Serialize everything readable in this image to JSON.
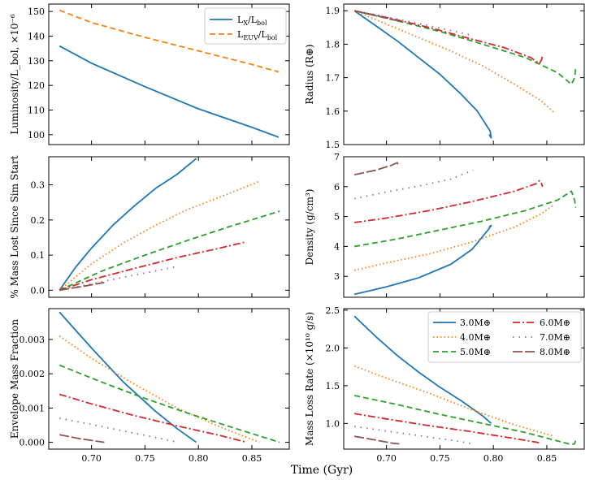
{
  "figure": {
    "xlabel": "Time (Gyr)",
    "xlim": [
      0.66,
      0.885
    ],
    "xticks": [
      0.7,
      0.75,
      0.8,
      0.85
    ],
    "xtick_labels": [
      "0.70",
      "0.75",
      "0.80",
      "0.85"
    ]
  },
  "colors": {
    "3.0": "#1f77b4",
    "4.0": "#ff7f0e",
    "5.0": "#2ca02c",
    "6.0": "#d62728",
    "7.0": "#9467bd",
    "8.0": "#8c564b"
  },
  "mass_legend": [
    {
      "mass": "3.0",
      "label": "3.0M⊕",
      "dash": ""
    },
    {
      "mass": "4.0",
      "label": "4.0M⊕",
      "dash": "1.5 3"
    },
    {
      "mass": "5.0",
      "label": "5.0M⊕",
      "dash": "7 4"
    },
    {
      "mass": "6.0",
      "label": "6.0M⊕",
      "dash": "9 3 2 3"
    },
    {
      "mass": "7.0",
      "label": "7.0M⊕",
      "dash": "1.5 6"
    },
    {
      "mass": "8.0",
      "label": "8.0M⊕",
      "dash": "12 3"
    }
  ],
  "chart_data": [
    {
      "id": "luminosity",
      "type": "line",
      "ylabel": "Luminosity/L_bol, ×10⁻⁶",
      "ylim": [
        96,
        153
      ],
      "yticks": [
        100,
        110,
        120,
        130,
        140,
        150
      ],
      "ytick_labels": [
        "100",
        "110",
        "120",
        "130",
        "140",
        "150"
      ],
      "legend": "top-right",
      "series": [
        {
          "name": "L_X/L_bol",
          "legend_main": "L",
          "legend_sub1": "X",
          "legend_mid": "/L",
          "legend_sub2": "bol",
          "color": "#1f77b4",
          "dash": "",
          "x": [
            0.67,
            0.7,
            0.75,
            0.8,
            0.85,
            0.875
          ],
          "y": [
            136,
            129,
            119.5,
            110.5,
            103,
            99
          ]
        },
        {
          "name": "L_EUV/L_bol",
          "legend_main": "L",
          "legend_sub1": "EUV",
          "legend_mid": "/L",
          "legend_sub2": "bol",
          "color": "#ff7f0e",
          "dash": "7 4",
          "x": [
            0.67,
            0.7,
            0.75,
            0.8,
            0.85,
            0.875
          ],
          "y": [
            150.5,
            145.5,
            139.5,
            134,
            128.5,
            125.5
          ]
        }
      ]
    },
    {
      "id": "radius",
      "type": "line",
      "ylabel": "Radius (R⊕)",
      "ylim": [
        1.5,
        1.92
      ],
      "yticks": [
        1.5,
        1.6,
        1.7,
        1.8,
        1.9
      ],
      "ytick_labels": [
        "1.5",
        "1.6",
        "1.7",
        "1.8",
        "1.9"
      ],
      "series": [
        {
          "mass": "3.0",
          "x": [
            0.67,
            0.69,
            0.71,
            0.73,
            0.75,
            0.77,
            0.785,
            0.797,
            0.798,
            0.796
          ],
          "y": [
            1.9,
            1.855,
            1.81,
            1.76,
            1.71,
            1.65,
            1.6,
            1.54,
            1.52,
            1.53
          ]
        },
        {
          "mass": "4.0",
          "x": [
            0.67,
            0.7,
            0.73,
            0.76,
            0.79,
            0.82,
            0.845,
            0.857
          ],
          "y": [
            1.9,
            1.86,
            1.82,
            1.78,
            1.735,
            1.68,
            1.63,
            1.595
          ]
        },
        {
          "mass": "5.0",
          "x": [
            0.67,
            0.71,
            0.75,
            0.79,
            0.83,
            0.86,
            0.873,
            0.876,
            0.877
          ],
          "y": [
            1.9,
            1.87,
            1.838,
            1.8,
            1.76,
            1.715,
            1.68,
            1.7,
            1.728
          ]
        },
        {
          "mass": "6.0",
          "x": [
            0.67,
            0.7,
            0.74,
            0.78,
            0.81,
            0.835,
            0.843,
            0.845,
            0.846
          ],
          "y": [
            1.9,
            1.88,
            1.85,
            1.815,
            1.79,
            1.76,
            1.742,
            1.753,
            1.765
          ]
        },
        {
          "mass": "7.0",
          "x": [
            0.67,
            0.69,
            0.71,
            0.73,
            0.75,
            0.77,
            0.781
          ],
          "y": [
            1.9,
            1.888,
            1.875,
            1.862,
            1.848,
            1.834,
            1.826
          ]
        },
        {
          "mass": "8.0",
          "x": [
            0.67,
            0.685,
            0.7,
            0.712
          ],
          "y": [
            1.9,
            1.889,
            1.878,
            1.869
          ]
        }
      ]
    },
    {
      "id": "mass_lost",
      "type": "line",
      "ylabel": "% Mass Lost Since Sim Start",
      "ylim": [
        -0.02,
        0.38
      ],
      "yticks": [
        0.0,
        0.1,
        0.2,
        0.3
      ],
      "ytick_labels": [
        "0.0",
        "0.1",
        "0.2",
        "0.3"
      ],
      "series": [
        {
          "mass": "3.0",
          "x": [
            0.67,
            0.685,
            0.7,
            0.72,
            0.74,
            0.76,
            0.78,
            0.798
          ],
          "y": [
            0.0,
            0.065,
            0.12,
            0.185,
            0.24,
            0.29,
            0.33,
            0.375
          ]
        },
        {
          "mass": "4.0",
          "x": [
            0.67,
            0.7,
            0.73,
            0.76,
            0.79,
            0.82,
            0.857
          ],
          "y": [
            0.0,
            0.075,
            0.135,
            0.185,
            0.23,
            0.265,
            0.31
          ]
        },
        {
          "mass": "5.0",
          "x": [
            0.67,
            0.71,
            0.75,
            0.79,
            0.83,
            0.876
          ],
          "y": [
            0.0,
            0.055,
            0.1,
            0.142,
            0.182,
            0.225
          ]
        },
        {
          "mass": "6.0",
          "x": [
            0.67,
            0.7,
            0.74,
            0.78,
            0.82,
            0.845
          ],
          "y": [
            0.0,
            0.03,
            0.062,
            0.093,
            0.12,
            0.138
          ]
        },
        {
          "mass": "7.0",
          "x": [
            0.67,
            0.7,
            0.73,
            0.76,
            0.781
          ],
          "y": [
            0.0,
            0.018,
            0.037,
            0.055,
            0.068
          ]
        },
        {
          "mass": "8.0",
          "x": [
            0.67,
            0.69,
            0.712
          ],
          "y": [
            0.0,
            0.01,
            0.022
          ]
        }
      ]
    },
    {
      "id": "density",
      "type": "line",
      "ylabel": "Density (g/cm³)",
      "ylim": [
        2.3,
        7.0
      ],
      "yticks": [
        3,
        4,
        5,
        6,
        7
      ],
      "ytick_labels": [
        "3",
        "4",
        "5",
        "6",
        "7"
      ],
      "series": [
        {
          "mass": "3.0",
          "x": [
            0.67,
            0.7,
            0.73,
            0.76,
            0.78,
            0.795,
            0.798,
            0.796
          ],
          "y": [
            2.4,
            2.65,
            2.95,
            3.4,
            3.9,
            4.55,
            4.7,
            4.65
          ]
        },
        {
          "mass": "4.0",
          "x": [
            0.67,
            0.7,
            0.74,
            0.78,
            0.82,
            0.845,
            0.857
          ],
          "y": [
            3.2,
            3.45,
            3.75,
            4.15,
            4.65,
            5.1,
            5.4
          ]
        },
        {
          "mass": "5.0",
          "x": [
            0.67,
            0.71,
            0.75,
            0.79,
            0.83,
            0.86,
            0.873,
            0.876,
            0.877
          ],
          "y": [
            4.0,
            4.25,
            4.55,
            4.85,
            5.2,
            5.55,
            5.85,
            5.55,
            5.3
          ]
        },
        {
          "mass": "6.0",
          "x": [
            0.67,
            0.7,
            0.74,
            0.78,
            0.82,
            0.84,
            0.843,
            0.845,
            0.846
          ],
          "y": [
            4.8,
            4.95,
            5.2,
            5.5,
            5.85,
            6.1,
            6.2,
            6.1,
            6.0
          ]
        },
        {
          "mass": "7.0",
          "x": [
            0.67,
            0.7,
            0.73,
            0.76,
            0.781
          ],
          "y": [
            5.6,
            5.82,
            6.02,
            6.25,
            6.55
          ]
        },
        {
          "mass": "8.0",
          "x": [
            0.67,
            0.69,
            0.705,
            0.71,
            0.712
          ],
          "y": [
            6.4,
            6.55,
            6.72,
            6.8,
            6.7
          ]
        }
      ]
    },
    {
      "id": "envelope",
      "type": "line",
      "ylabel": "Envelope Mass Fraction",
      "ylim": [
        -0.0002,
        0.0039
      ],
      "yticks": [
        0.0,
        0.001,
        0.002,
        0.003
      ],
      "ytick_labels": [
        "0.000",
        "0.001",
        "0.002",
        "0.003"
      ],
      "series": [
        {
          "mass": "3.0",
          "x": [
            0.67,
            0.7,
            0.73,
            0.76,
            0.78,
            0.798
          ],
          "y": [
            0.0038,
            0.00275,
            0.00175,
            0.0009,
            0.0004,
            0.0
          ]
        },
        {
          "mass": "4.0",
          "x": [
            0.67,
            0.7,
            0.74,
            0.78,
            0.82,
            0.857
          ],
          "y": [
            0.0031,
            0.00245,
            0.0017,
            0.001,
            0.00045,
            0.0
          ]
        },
        {
          "mass": "5.0",
          "x": [
            0.67,
            0.71,
            0.75,
            0.79,
            0.83,
            0.876
          ],
          "y": [
            0.00225,
            0.00175,
            0.00128,
            0.00085,
            0.00045,
            0.0
          ]
        },
        {
          "mass": "6.0",
          "x": [
            0.67,
            0.7,
            0.74,
            0.78,
            0.82,
            0.845
          ],
          "y": [
            0.0014,
            0.00112,
            0.00078,
            0.00048,
            0.0002,
            0.0
          ]
        },
        {
          "mass": "7.0",
          "x": [
            0.67,
            0.7,
            0.73,
            0.76,
            0.781
          ],
          "y": [
            0.0007,
            0.00052,
            0.00033,
            0.00014,
            0.0
          ]
        },
        {
          "mass": "8.0",
          "x": [
            0.67,
            0.69,
            0.712
          ],
          "y": [
            0.00022,
            0.0001,
            0.0
          ]
        }
      ]
    },
    {
      "id": "mass_loss_rate",
      "type": "line",
      "ylabel": "Mass Loss Rate (×10¹⁰ g/s)",
      "ylim": [
        0.66,
        2.52
      ],
      "yticks": [
        1.0,
        1.5,
        2.0,
        2.5
      ],
      "ytick_labels": [
        "1.0",
        "1.5",
        "2.0",
        "2.5"
      ],
      "legend": "top-right",
      "series": [
        {
          "mass": "3.0",
          "x": [
            0.67,
            0.69,
            0.71,
            0.73,
            0.75,
            0.77,
            0.79,
            0.798
          ],
          "y": [
            2.42,
            2.15,
            1.9,
            1.68,
            1.48,
            1.3,
            1.1,
            1.0
          ]
        },
        {
          "mass": "4.0",
          "x": [
            0.67,
            0.7,
            0.74,
            0.78,
            0.82,
            0.857
          ],
          "y": [
            1.76,
            1.6,
            1.4,
            1.18,
            0.98,
            0.83
          ]
        },
        {
          "mass": "5.0",
          "x": [
            0.67,
            0.71,
            0.75,
            0.79,
            0.83,
            0.873,
            0.876,
            0.877
          ],
          "y": [
            1.37,
            1.25,
            1.12,
            1.0,
            0.88,
            0.72,
            0.73,
            0.78
          ]
        },
        {
          "mass": "6.0",
          "x": [
            0.67,
            0.7,
            0.74,
            0.78,
            0.82,
            0.845
          ],
          "y": [
            1.13,
            1.06,
            0.97,
            0.89,
            0.8,
            0.74
          ]
        },
        {
          "mass": "7.0",
          "x": [
            0.67,
            0.7,
            0.73,
            0.76,
            0.781
          ],
          "y": [
            0.96,
            0.9,
            0.84,
            0.78,
            0.73
          ]
        },
        {
          "mass": "8.0",
          "x": [
            0.67,
            0.69,
            0.705,
            0.712
          ],
          "y": [
            0.83,
            0.78,
            0.74,
            0.73
          ]
        }
      ]
    }
  ]
}
